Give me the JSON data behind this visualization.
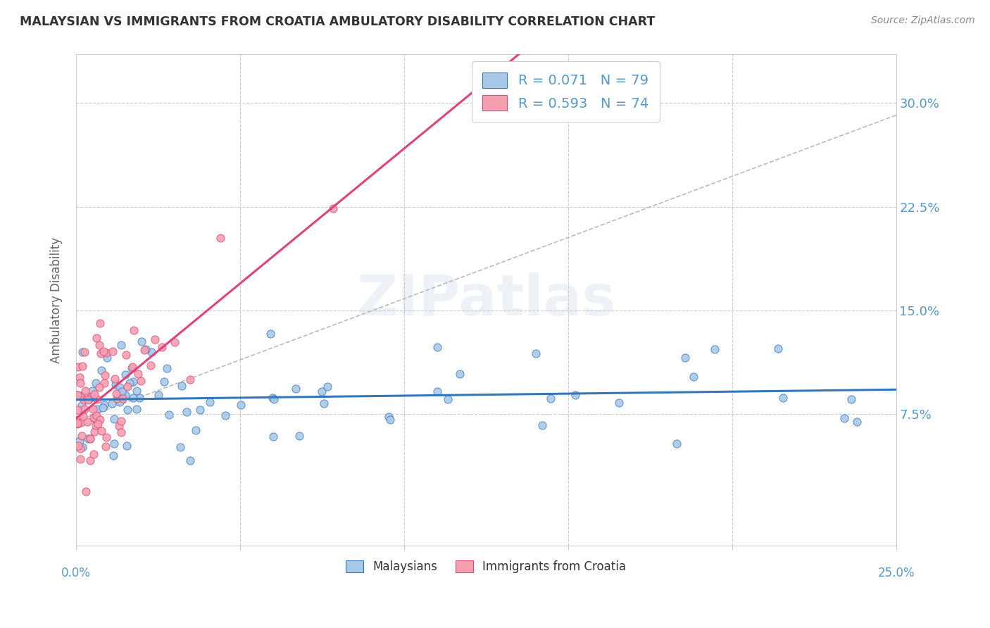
{
  "title": "MALAYSIAN VS IMMIGRANTS FROM CROATIA AMBULATORY DISABILITY CORRELATION CHART",
  "source": "Source: ZipAtlas.com",
  "ylabel": "Ambulatory Disability",
  "ytick_labels": [
    "7.5%",
    "15.0%",
    "22.5%",
    "30.0%"
  ],
  "ytick_values": [
    0.075,
    0.15,
    0.225,
    0.3
  ],
  "xlim": [
    0.0,
    0.25
  ],
  "ylim": [
    -0.02,
    0.335
  ],
  "legend_label1": "R = 0.071   N = 79",
  "legend_label2": "R = 0.593   N = 74",
  "color_malaysians": "#a8c8e8",
  "color_croatia": "#f4a0b0",
  "color_trendline_malaysians": "#3377bb",
  "color_trendline_croatia": "#dd4477",
  "color_trendline_ref": "#bbbbbb",
  "background_color": "#ffffff",
  "grid_color": "#cccccc",
  "title_color": "#333333",
  "axis_label_color": "#5599cc",
  "watermark": "ZIPatlas"
}
